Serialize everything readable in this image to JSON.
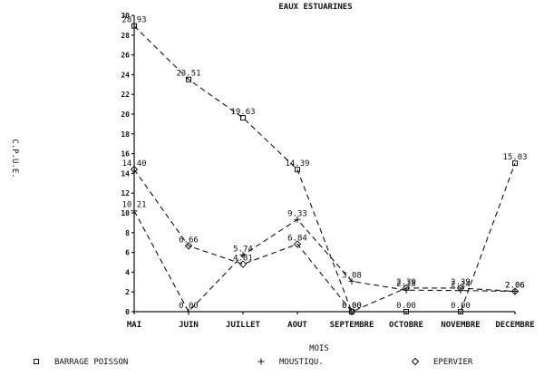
{
  "chart_data": {
    "type": "line",
    "title": "EAUX ESTUARINES",
    "xlabel": "MOIS",
    "ylabel": "C.P.U.E.",
    "categories": [
      "MAI",
      "JUIN",
      "JUILLET",
      "AOUT",
      "SEPTEMBRE",
      "OCTOBRE",
      "NOVEMBRE",
      "DECEMBRE"
    ],
    "ylim": [
      0,
      30
    ],
    "yticks": [
      0,
      2,
      4,
      6,
      8,
      10,
      12,
      14,
      16,
      18,
      20,
      22,
      24,
      26,
      28,
      30
    ],
    "grid": false,
    "legend_position": "bottom",
    "series": [
      {
        "name": "BARRAGE POISSON",
        "marker": "square",
        "values": [
          28.93,
          23.51,
          19.63,
          14.39,
          0.0,
          0.0,
          0.0,
          15.03
        ],
        "labels": [
          "28.93",
          "23.51",
          "19.63",
          "14.39",
          "0.00",
          "0.00",
          "0.00",
          "15.03"
        ]
      },
      {
        "name": "MOUSTIQU.",
        "marker": "plus",
        "values": [
          10.21,
          0.0,
          5.74,
          9.33,
          3.08,
          2.18,
          2.14,
          2.06
        ],
        "labels": [
          "10.21",
          "0.00",
          "5.74",
          "9.33",
          "3.08",
          "2.18",
          "2.14",
          "2.06"
        ]
      },
      {
        "name": "EPERVIER",
        "marker": "diamond",
        "values": [
          14.4,
          6.66,
          4.81,
          6.84,
          0.0,
          2.39,
          2.39,
          2.06
        ],
        "labels": [
          "14.40",
          "6.66",
          "4.81",
          "6.84",
          "0.00",
          "2.39",
          "2.39",
          "2.06"
        ]
      }
    ]
  }
}
